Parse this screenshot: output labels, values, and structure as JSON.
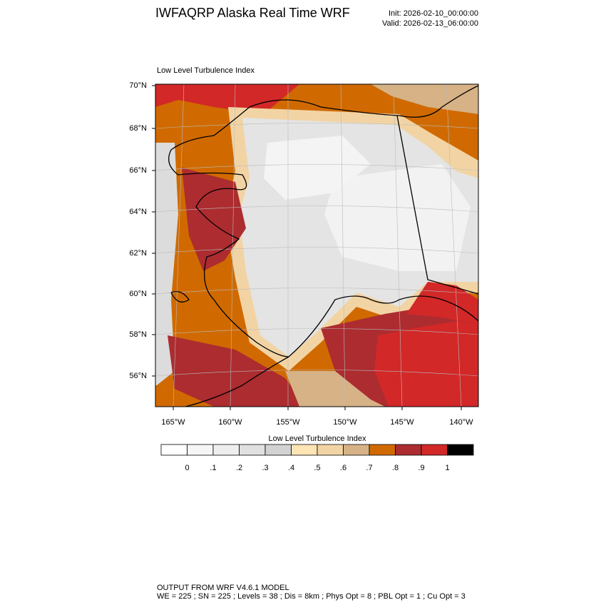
{
  "header": {
    "title": "IWFAQRP Alaska Real Time WRF",
    "init": "Init: 2026-02-10_00:00:00",
    "valid": "Valid: 2026-02-13_06:00:00"
  },
  "map": {
    "subtitle": "Low Level Turbulence Index",
    "lat_labels": [
      "70°N",
      "68°N",
      "66°N",
      "64°N",
      "62°N",
      "60°N",
      "58°N",
      "56°N"
    ],
    "lon_labels": [
      "165°W",
      "160°W",
      "155°W",
      "150°W",
      "145°W",
      "140°W"
    ]
  },
  "colorbar": {
    "title": "Low Level Turbulence Index",
    "labels": [
      "0",
      ".1",
      ".2",
      ".3",
      ".4",
      ".5",
      ".6",
      ".7",
      ".8",
      ".9",
      "1"
    ],
    "colors": [
      "#ffffff",
      "#f6f6f6",
      "#eeeeee",
      "#e0e0e0",
      "#d2d2d2",
      "#ffe4b4",
      "#f2d4a4",
      "#d6b286",
      "#d06a00",
      "#ac2c30",
      "#d22828",
      "#000000"
    ]
  },
  "footer": {
    "line1": "OUTPUT FROM WRF V4.6.1 MODEL",
    "line2": "WE = 225 ; SN = 225 ; Levels = 38 ; Dis = 8km ; Phys Opt = 8 ; PBL Opt = 1 ; Cu Opt = 3"
  }
}
